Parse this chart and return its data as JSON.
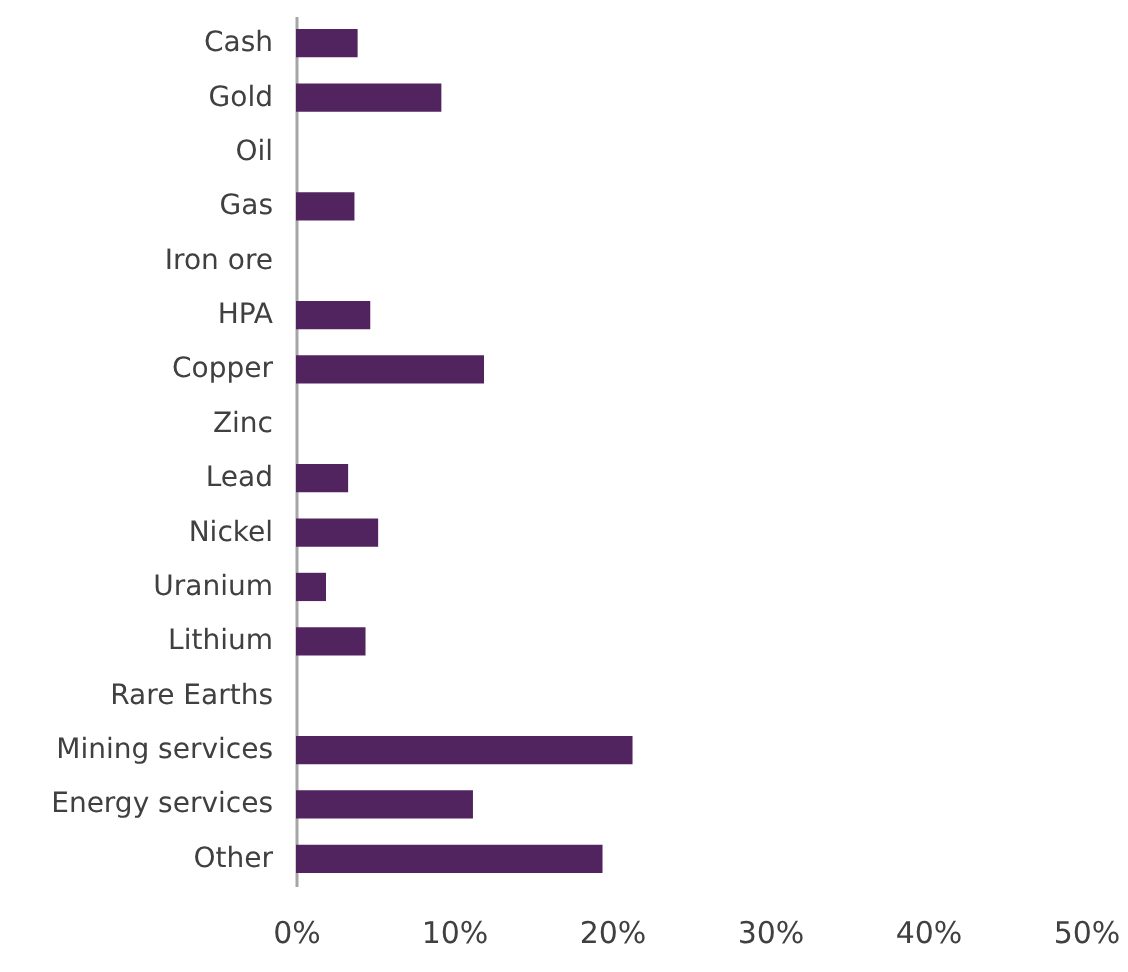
{
  "chart_data": {
    "type": "bar",
    "orientation": "horizontal",
    "categories": [
      "Cash",
      "Gold",
      "Oil",
      "Gas",
      "Iron ore ",
      "HPA",
      "Copper ",
      "Zinc",
      "Lead",
      "Nickel",
      "Uranium",
      "Lithium",
      "Rare Earths",
      "Mining services",
      "Energy services ",
      "Other"
    ],
    "values": [
      3.9,
      9.2,
      null,
      3.7,
      null,
      4.7,
      11.9,
      null,
      3.3,
      5.2,
      1.9,
      4.4,
      null,
      21.3,
      11.2,
      19.4
    ],
    "color": "#52245f",
    "xlim": [
      0,
      50
    ],
    "xticks": [
      {
        "value": 0,
        "label": "0%"
      },
      {
        "value": 10,
        "label": "10%"
      },
      {
        "value": 20,
        "label": "20%"
      },
      {
        "value": 30,
        "label": "30%"
      },
      {
        "value": 40,
        "label": "40%"
      },
      {
        "value": 50,
        "label": "50%"
      }
    ],
    "grid": false
  }
}
